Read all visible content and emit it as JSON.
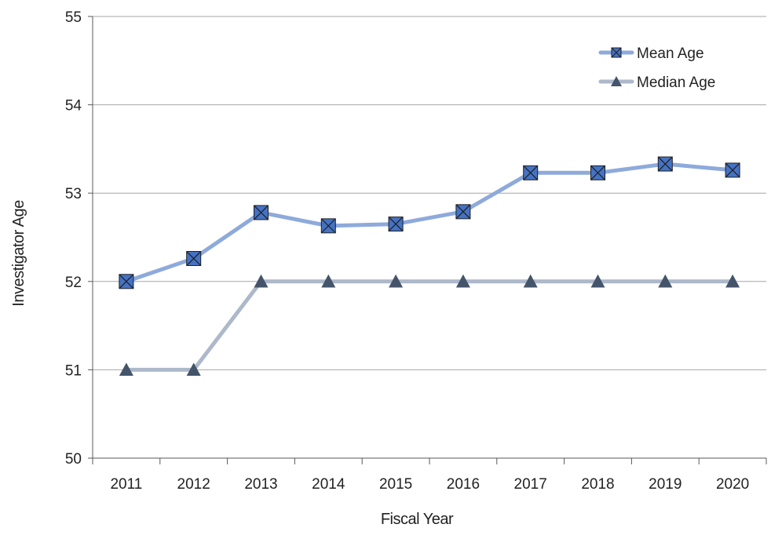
{
  "chart_data": {
    "type": "line",
    "title": "",
    "xlabel": "Fiscal Year",
    "ylabel": "Investigator Age",
    "categories": [
      "2011",
      "2012",
      "2013",
      "2014",
      "2015",
      "2016",
      "2017",
      "2018",
      "2019",
      "2020"
    ],
    "ylim": [
      50,
      55
    ],
    "yticks": [
      50,
      51,
      52,
      53,
      54,
      55
    ],
    "grid": true,
    "legend_position": "top-right",
    "series": [
      {
        "name": "Mean Age",
        "values": [
          52.0,
          52.26,
          52.78,
          52.63,
          52.65,
          52.79,
          53.23,
          53.23,
          53.33,
          53.26
        ],
        "line_color": "#8eaadb",
        "marker": "box-x",
        "marker_color": "#4472c4"
      },
      {
        "name": "Median Age",
        "values": [
          51,
          51,
          52,
          52,
          52,
          52,
          52,
          52,
          52,
          52
        ],
        "line_color": "#adb9ca",
        "marker": "triangle",
        "marker_color": "#44546a"
      }
    ]
  }
}
